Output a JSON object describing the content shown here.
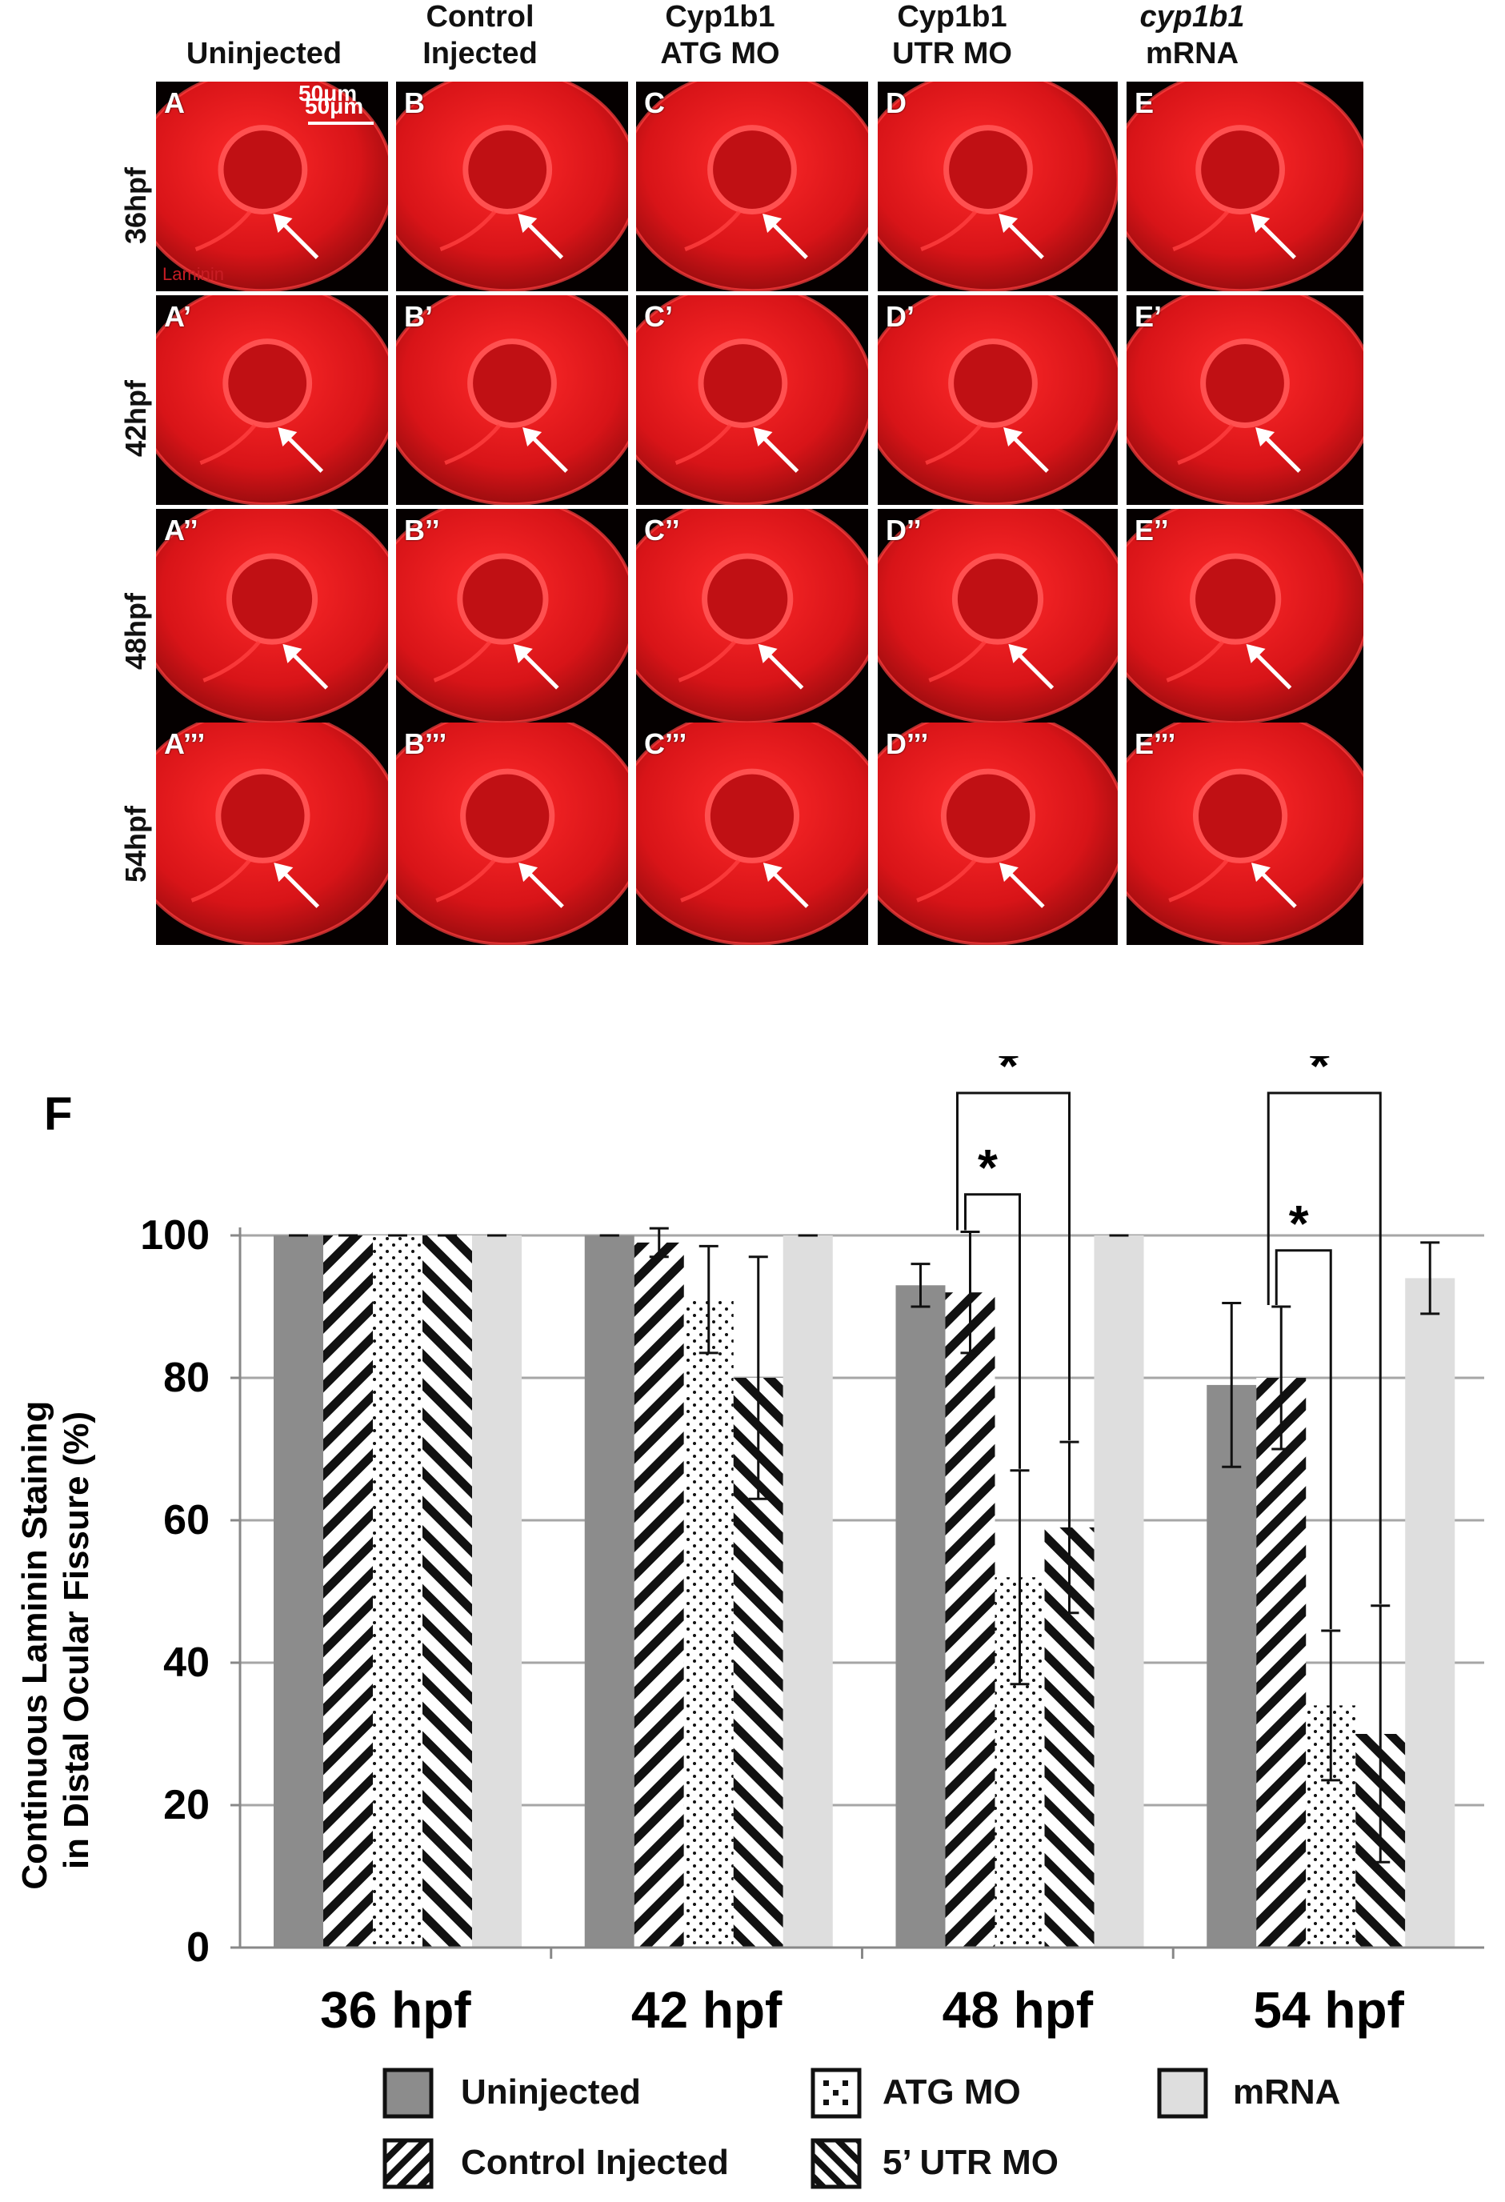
{
  "columns": [
    {
      "line1": "",
      "line2": "Uninjected",
      "italic": false
    },
    {
      "line1": "Control",
      "line2": "Injected",
      "italic": false
    },
    {
      "line1": "Cyp1b1",
      "line2": "ATG MO",
      "italic": false
    },
    {
      "line1": "Cyp1b1",
      "line2": "UTR MO",
      "italic": false
    },
    {
      "line1": "cyp1b1",
      "line2": "mRNA",
      "italic": true
    }
  ],
  "rows": [
    "36hpf",
    "42hpf",
    "48hpf",
    "54hpf"
  ],
  "panel_labels": [
    [
      "A",
      "B",
      "C",
      "D",
      "E"
    ],
    [
      "A’",
      "B’",
      "C’",
      "D’",
      "E’"
    ],
    [
      "A’’",
      "B’’",
      "C’’",
      "D’’",
      "E’’"
    ],
    [
      "A’’’",
      "B’’’",
      "C’’’",
      "D’’’",
      "E’’’"
    ]
  ],
  "scale_bar_label_1": "50μm",
  "scale_bar_label_2": "50μm",
  "stain_label": "Laminin",
  "colors": {
    "stain_red": "#e0141c",
    "bar_uninjected": "#8c8c8c",
    "bar_mrna": "#dedede",
    "grid": "#a6a6a6"
  },
  "panel_F_label": "F",
  "chart_data": {
    "type": "bar",
    "title": "",
    "xlabel": "",
    "ylabel": "Continuous Laminin Staining in Distal Ocular Fissure (%)",
    "ylim": [
      0,
      100
    ],
    "yticks": [
      0,
      20,
      40,
      60,
      80,
      100
    ],
    "grid": true,
    "categories": [
      "36 hpf",
      "42 hpf",
      "48 hpf",
      "54 hpf"
    ],
    "series": [
      {
        "name": "Uninjected",
        "values": [
          100,
          100,
          93,
          79
        ],
        "errors": [
          0,
          0,
          3,
          11.5
        ],
        "pattern": "solid-dark"
      },
      {
        "name": "Control Injected",
        "values": [
          100,
          99,
          92,
          80
        ],
        "errors": [
          0,
          2,
          8.5,
          10
        ],
        "pattern": "diagonal-back"
      },
      {
        "name": "ATG MO",
        "values": [
          100,
          91,
          52,
          34
        ],
        "errors": [
          0,
          7.5,
          15,
          10.5
        ],
        "pattern": "dots"
      },
      {
        "name": "5’ UTR MO",
        "values": [
          100,
          80,
          59,
          30
        ],
        "errors": [
          0,
          17,
          12,
          18
        ],
        "pattern": "diagonal-fwd"
      },
      {
        "name": "mRNA",
        "values": [
          100,
          100,
          100,
          94
        ],
        "errors": [
          0,
          0,
          0,
          5
        ],
        "pattern": "solid-light"
      }
    ],
    "significance": [
      {
        "category": "48 hpf",
        "from": "Control Injected",
        "to": "ATG MO",
        "label": "*"
      },
      {
        "category": "48 hpf",
        "from": "Control Injected",
        "to": "5’ UTR MO",
        "label": "*"
      },
      {
        "category": "54 hpf",
        "from": "Control Injected",
        "to": "ATG MO",
        "label": "*"
      },
      {
        "category": "54 hpf",
        "from": "Control Injected",
        "to": "5’ UTR MO",
        "label": "*"
      }
    ],
    "legend": [
      "Uninjected",
      "ATG MO",
      "mRNA",
      "Control Injected",
      "5’ UTR MO"
    ],
    "legend_position": "bottom"
  }
}
